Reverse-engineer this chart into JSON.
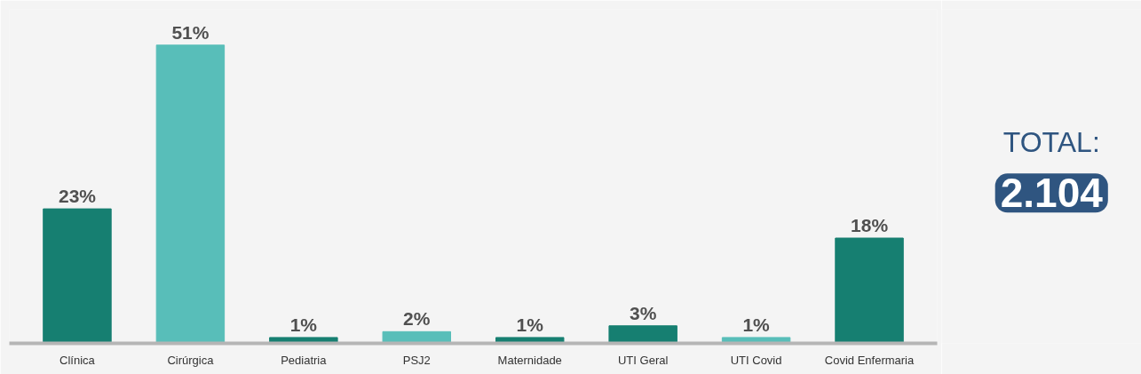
{
  "chart_data": {
    "type": "bar",
    "categories": [
      "Clínica",
      "Cirúrgica",
      "Pediatria",
      "PSJ2",
      "Maternidade",
      "UTI Geral",
      "UTI Covid",
      "Covid Enfermaria"
    ],
    "values": [
      23,
      51,
      1,
      2,
      1,
      3,
      1,
      18
    ],
    "value_labels": [
      "23%",
      "51%",
      "1%",
      "2%",
      "1%",
      "3%",
      "1%",
      "18%"
    ],
    "colors": [
      "#167f71",
      "#58beb9",
      "#167f71",
      "#58beb9",
      "#167f71",
      "#167f71",
      "#58beb9",
      "#167f71"
    ],
    "tick_labels": "x",
    "grid": false,
    "annotations": [
      "TOTAL:",
      "2.104"
    ]
  }
}
